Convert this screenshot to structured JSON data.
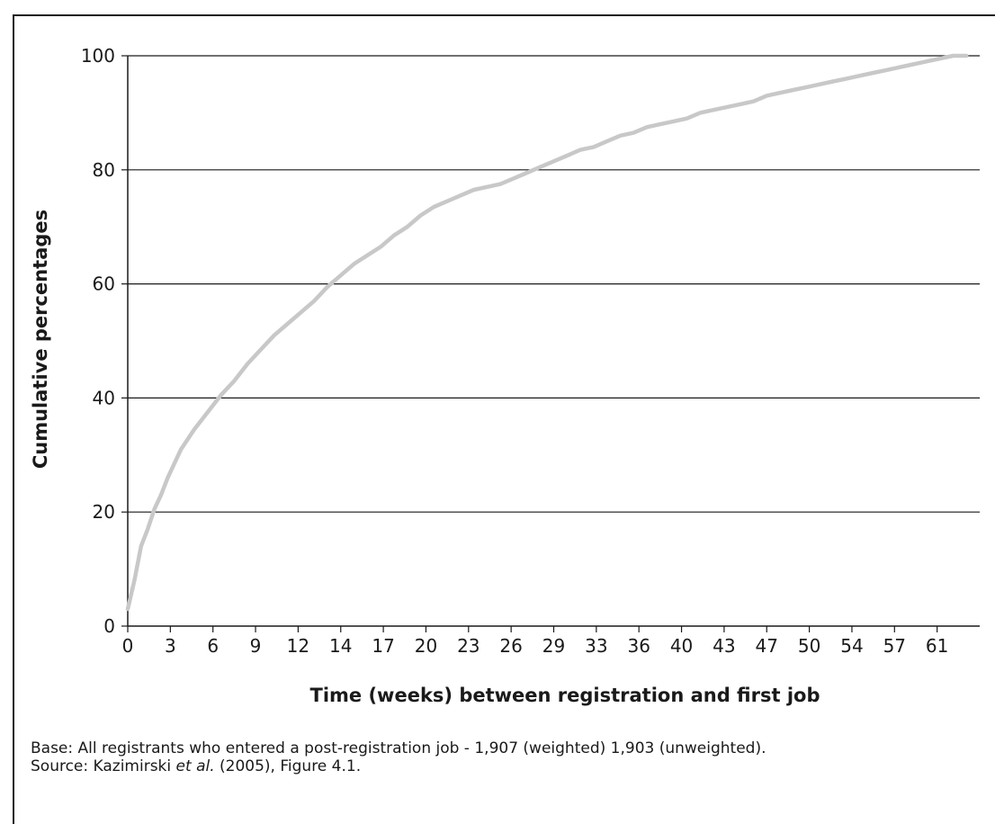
{
  "chart_data": {
    "type": "line",
    "title": "",
    "xlabel": "Time (weeks) between registration and first job",
    "ylabel": "Cumulative percentages",
    "x_tick_labels": [
      "0",
      "3",
      "6",
      "9",
      "12",
      "14",
      "17",
      "20",
      "23",
      "26",
      "29",
      "33",
      "36",
      "40",
      "43",
      "47",
      "50",
      "54",
      "57",
      "61"
    ],
    "y_ticks": [
      0,
      20,
      40,
      60,
      80,
      100
    ],
    "ylim": [
      0,
      100
    ],
    "xlim": [
      0,
      64
    ],
    "grid": "horizontal",
    "line_color": "#c8c8c8",
    "series": [
      {
        "x": [
          0,
          0.5,
          1,
          1.5,
          2,
          2.5,
          3,
          3.5,
          4,
          5,
          6,
          7,
          8,
          9,
          10,
          11,
          12,
          13,
          14,
          15,
          16,
          17,
          18,
          19,
          20,
          21,
          22,
          23,
          24,
          25,
          26,
          27,
          28,
          29,
          30,
          31,
          32,
          33,
          34,
          35,
          36,
          37,
          38,
          39,
          40,
          41,
          42,
          43,
          44,
          45,
          46,
          47,
          48,
          49,
          50,
          51,
          52,
          53,
          54,
          55,
          56,
          57,
          58,
          59,
          60,
          61,
          62,
          63
        ],
        "y": [
          3,
          8,
          14,
          17,
          20.5,
          23,
          26,
          28.5,
          31,
          34.5,
          37.5,
          40.5,
          43,
          46,
          48.5,
          51,
          53,
          55,
          57,
          59.5,
          61.5,
          63.5,
          65,
          66.5,
          68.5,
          70,
          72,
          73.5,
          74.5,
          75.5,
          76.5,
          77,
          77.5,
          78.5,
          79.5,
          80.5,
          81.5,
          82.5,
          83.5,
          84,
          85,
          86,
          86.5,
          87.5,
          88,
          88.5,
          89,
          90,
          90.5,
          91,
          91.5,
          92,
          93,
          93.5,
          94,
          94.5,
          95,
          95.5,
          96,
          96.5,
          97,
          97.5,
          98,
          98.5,
          99,
          99.5,
          100,
          100
        ]
      }
    ]
  },
  "note": {
    "base_text": "Base: All registrants who entered a post-registration job - 1,907 (weighted) 1,903 (unweighted).",
    "source_prefix": "Source: Kazimirski ",
    "source_italic": "et al.",
    "source_suffix": " (2005), Figure 4.1."
  }
}
